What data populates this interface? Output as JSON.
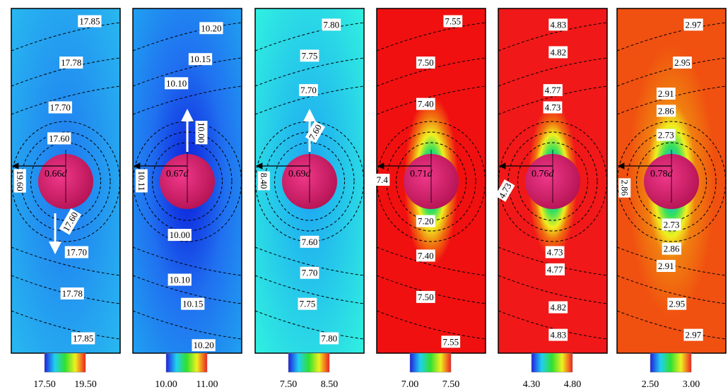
{
  "panels": [
    {
      "contours": [
        "17.85",
        "17.78",
        "17.70",
        "17.60",
        "19.60",
        "17.60",
        "17.70",
        "17.78",
        "17.85"
      ],
      "radius": "0.66",
      "unit": "d",
      "colorbar": [
        "17.50",
        "19.50"
      ]
    },
    {
      "contours": [
        "10.20",
        "10.15",
        "10.10",
        "10.00",
        "10.11",
        "10.00",
        "10.10",
        "10.15",
        "10.20"
      ],
      "radius": "0.67",
      "unit": "d",
      "colorbar": [
        "10.00",
        "11.00"
      ]
    },
    {
      "contours": [
        "7.80",
        "7.75",
        "7.70",
        "7.60",
        "8.40",
        "7.60",
        "7.70",
        "7.75",
        "7.80"
      ],
      "radius": "0.69",
      "unit": "d",
      "colorbar": [
        "7.50",
        "8.50"
      ]
    },
    {
      "contours": [
        "7.55",
        "7.50",
        "7.40",
        "7.4",
        "7.20",
        "7.40",
        "7.50",
        "7.55"
      ],
      "radius": "0.71",
      "unit": "d",
      "colorbar": [
        "7.00",
        "7.50"
      ]
    },
    {
      "contours": [
        "4.83",
        "4.82",
        "4.77",
        "4.73",
        "4.73",
        "4.73",
        "4.77",
        "4.82",
        "4.83"
      ],
      "radius": "0.76",
      "unit": "d",
      "colorbar": [
        "4.30",
        "4.80"
      ]
    },
    {
      "contours": [
        "2.97",
        "2.95",
        "2.91",
        "2.86",
        "2.73",
        "2.86",
        "2.73",
        "2.86",
        "2.91",
        "2.95",
        "2.97"
      ],
      "radius": "0.78",
      "unit": "d",
      "colorbar": [
        "2.50",
        "3.00"
      ]
    }
  ]
}
